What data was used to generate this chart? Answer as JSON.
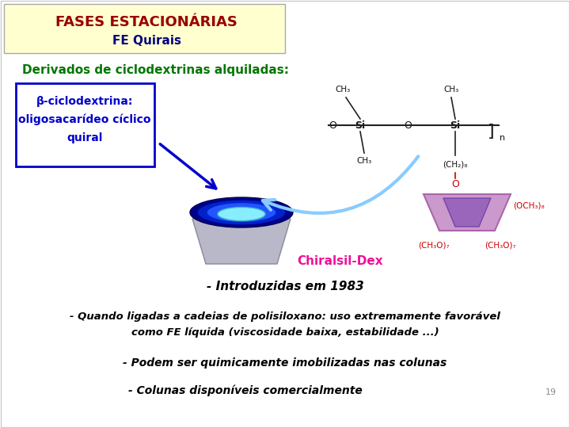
{
  "bg_color": "#ffffff",
  "header_bg": "#ffffd0",
  "header_border": "#aaaaaa",
  "title1": "FASES ESTACIONÁRIAS",
  "title1_color": "#990000",
  "title2": "FE Quirais",
  "title2_color": "#000080",
  "subtitle": "Derivados de ciclodextrinas alquiladas:",
  "subtitle_color": "#007700",
  "box_text_line1": "β-ciclodextrina:",
  "box_text_line2": "oligosacarídeo cíclico",
  "box_text_line3": "quiral",
  "box_text_color": "#0000cc",
  "box_border_color": "#0000cc",
  "chiralsil_label": "Chiralsil-Dex",
  "chiralsil_color": "#ee1199",
  "bullet1": "- Introduzidas em 1983",
  "bullet2_line1": "- Quando ligadas a cadeias de polisiloxano: uso extremamente favorável",
  "bullet2_line2": "como FE líquida (viscosidade baixa, estabilidade ...)",
  "bullet3": "- Podem ser quimicamente imobilizadas nas colunas",
  "bullet4": "- Colunas disponíveis comercialmente",
  "bullets_color": "#000000",
  "page_number": "19",
  "page_color": "#888888"
}
